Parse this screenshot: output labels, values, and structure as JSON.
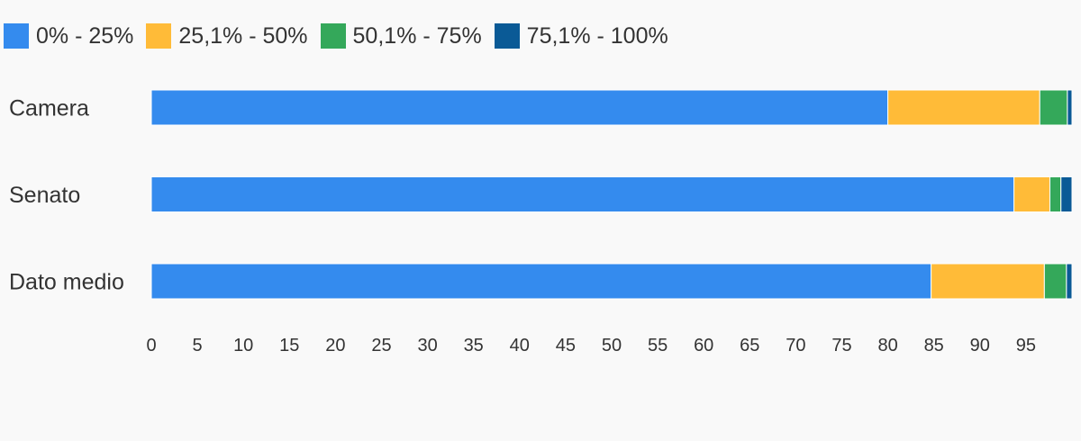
{
  "chart_data": {
    "type": "bar",
    "orientation": "horizontal",
    "stacked": true,
    "categories": [
      "Camera",
      "Senato",
      "Dato medio"
    ],
    "series": [
      {
        "name": "0% - 25%",
        "color": "#348bee",
        "values": [
          80.0,
          93.7,
          84.7
        ]
      },
      {
        "name": "25,1% - 50%",
        "color": "#ffbb38",
        "values": [
          16.5,
          3.9,
          12.3
        ]
      },
      {
        "name": "50,1% - 75%",
        "color": "#34a85a",
        "values": [
          3.0,
          1.2,
          2.4
        ]
      },
      {
        "name": "75,1% - 100%",
        "color": "#0a5a96",
        "values": [
          0.5,
          1.2,
          0.6
        ]
      }
    ],
    "xticks": [
      0,
      5,
      10,
      15,
      20,
      25,
      30,
      35,
      40,
      45,
      50,
      55,
      60,
      65,
      70,
      75,
      80,
      85,
      90,
      95
    ],
    "xlim": [
      0,
      100
    ],
    "legend_position": "top-left",
    "grid": false
  }
}
